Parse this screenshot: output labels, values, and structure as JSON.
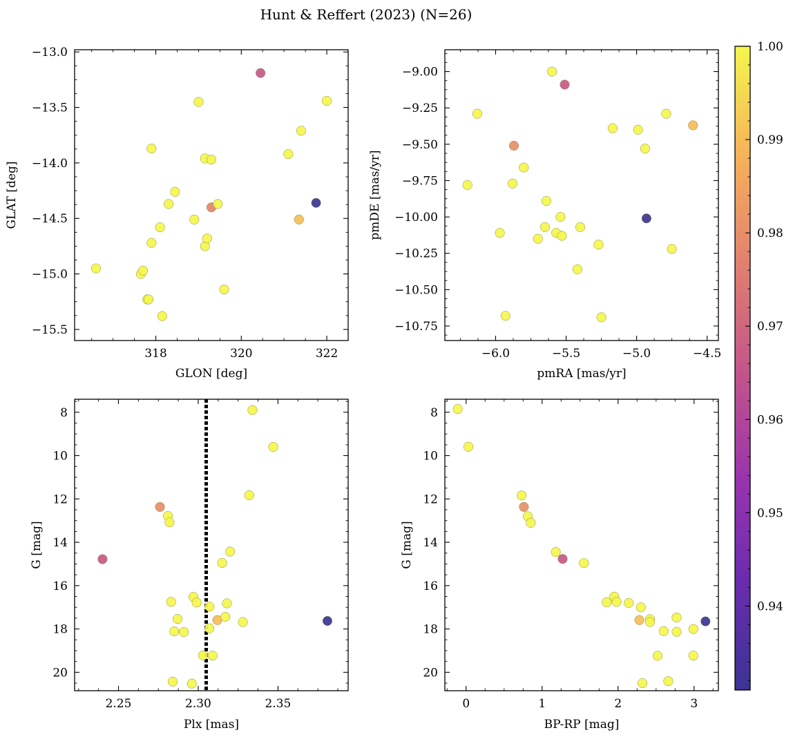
{
  "figure": {
    "title": "Hunt & Reffert (2023) (N=26)"
  },
  "colorbar": {
    "colormap": "plasma",
    "range": [
      0.931,
      1.0
    ],
    "ticks": [
      0.94,
      0.95,
      0.96,
      0.97,
      0.98,
      0.99,
      1.0
    ],
    "tick_labels": [
      "0.94",
      "0.95",
      "0.96",
      "0.97",
      "0.98",
      "0.99",
      "1.00"
    ]
  },
  "chart_data": [
    {
      "type": "scatter",
      "name": "position",
      "xlabel": "GLON [deg]",
      "ylabel": "GLAT [deg]",
      "xlim": [
        316.1,
        322.5
      ],
      "ylim": [
        -15.6,
        -12.98
      ],
      "xticks": [
        318,
        320,
        322
      ],
      "xtick_labels": [
        "318",
        "320",
        "322"
      ],
      "yticks": [
        -13.0,
        -13.5,
        -14.0,
        -14.5,
        -15.0,
        -15.5
      ],
      "ytick_labels": [
        "−13.0",
        "−13.5",
        "−14.0",
        "−14.5",
        "−15.0",
        "−15.5"
      ],
      "points": [
        {
          "x": 316.6,
          "y": -14.95,
          "c": 1.0
        },
        {
          "x": 317.65,
          "y": -15.0,
          "c": 1.0
        },
        {
          "x": 317.7,
          "y": -14.97,
          "c": 1.0
        },
        {
          "x": 317.8,
          "y": -15.23,
          "c": 1.0
        },
        {
          "x": 317.83,
          "y": -15.23,
          "c": 1.0
        },
        {
          "x": 317.9,
          "y": -14.72,
          "c": 1.0
        },
        {
          "x": 317.9,
          "y": -13.87,
          "c": 1.0
        },
        {
          "x": 318.1,
          "y": -14.58,
          "c": 1.0
        },
        {
          "x": 318.15,
          "y": -15.38,
          "c": 1.0
        },
        {
          "x": 318.3,
          "y": -14.37,
          "c": 1.0
        },
        {
          "x": 318.45,
          "y": -14.26,
          "c": 1.0
        },
        {
          "x": 318.9,
          "y": -14.51,
          "c": 1.0
        },
        {
          "x": 319.0,
          "y": -13.45,
          "c": 1.0
        },
        {
          "x": 319.15,
          "y": -13.96,
          "c": 1.0
        },
        {
          "x": 319.15,
          "y": -14.75,
          "c": 1.0
        },
        {
          "x": 319.2,
          "y": -14.68,
          "c": 1.0
        },
        {
          "x": 319.3,
          "y": -13.97,
          "c": 1.0
        },
        {
          "x": 319.3,
          "y": -14.4,
          "c": 0.978
        },
        {
          "x": 319.45,
          "y": -14.37,
          "c": 1.0
        },
        {
          "x": 319.6,
          "y": -15.14,
          "c": 1.0
        },
        {
          "x": 320.45,
          "y": -13.19,
          "c": 0.966
        },
        {
          "x": 321.1,
          "y": -13.92,
          "c": 1.0
        },
        {
          "x": 321.35,
          "y": -14.51,
          "c": 0.99
        },
        {
          "x": 321.4,
          "y": -13.71,
          "c": 1.0
        },
        {
          "x": 321.75,
          "y": -14.36,
          "c": 0.931
        },
        {
          "x": 322.0,
          "y": -13.44,
          "c": 1.0
        }
      ]
    },
    {
      "type": "scatter",
      "name": "proper-motion",
      "xlabel": "pmRA [mas/yr]",
      "ylabel": "pmDE [mas/yr]",
      "xlim": [
        -6.36,
        -4.42
      ],
      "ylim": [
        -10.85,
        -8.85
      ],
      "xticks": [
        -6.0,
        -5.5,
        -5.0,
        -4.5
      ],
      "xtick_labels": [
        "−6.0",
        "−5.5",
        "−5.0",
        "−4.5"
      ],
      "yticks": [
        -9.0,
        -9.25,
        -9.5,
        -9.75,
        -10.0,
        -10.25,
        -10.5,
        -10.75
      ],
      "ytick_labels": [
        "−9.00",
        "−9.25",
        "−9.50",
        "−9.75",
        "−10.00",
        "−10.25",
        "−10.50",
        "−10.75"
      ],
      "points": [
        {
          "x": -6.2,
          "y": -9.78,
          "c": 1.0
        },
        {
          "x": -6.13,
          "y": -9.29,
          "c": 1.0
        },
        {
          "x": -5.97,
          "y": -10.11,
          "c": 1.0
        },
        {
          "x": -5.93,
          "y": -10.68,
          "c": 1.0
        },
        {
          "x": -5.88,
          "y": -9.77,
          "c": 1.0
        },
        {
          "x": -5.87,
          "y": -9.51,
          "c": 0.98
        },
        {
          "x": -5.8,
          "y": -9.66,
          "c": 1.0
        },
        {
          "x": -5.7,
          "y": -10.15,
          "c": 1.0
        },
        {
          "x": -5.65,
          "y": -10.07,
          "c": 1.0
        },
        {
          "x": -5.64,
          "y": -9.89,
          "c": 1.0
        },
        {
          "x": -5.6,
          "y": -9.0,
          "c": 1.0
        },
        {
          "x": -5.57,
          "y": -10.11,
          "c": 1.0
        },
        {
          "x": -5.54,
          "y": -10.0,
          "c": 1.0
        },
        {
          "x": -5.53,
          "y": -10.13,
          "c": 1.0
        },
        {
          "x": -5.51,
          "y": -9.09,
          "c": 0.966
        },
        {
          "x": -5.42,
          "y": -10.36,
          "c": 1.0
        },
        {
          "x": -5.4,
          "y": -10.07,
          "c": 1.0
        },
        {
          "x": -5.27,
          "y": -10.19,
          "c": 1.0
        },
        {
          "x": -5.25,
          "y": -10.69,
          "c": 1.0
        },
        {
          "x": -5.17,
          "y": -9.39,
          "c": 1.0
        },
        {
          "x": -4.99,
          "y": -9.4,
          "c": 1.0
        },
        {
          "x": -4.94,
          "y": -9.53,
          "c": 1.0
        },
        {
          "x": -4.93,
          "y": -10.01,
          "c": 0.931
        },
        {
          "x": -4.79,
          "y": -9.29,
          "c": 1.0
        },
        {
          "x": -4.75,
          "y": -10.22,
          "c": 1.0
        },
        {
          "x": -4.6,
          "y": -9.37,
          "c": 0.99
        }
      ]
    },
    {
      "type": "scatter",
      "name": "parallax-magnitude",
      "xlabel": "Plx [mas]",
      "ylabel": "G [mag]",
      "xlim": [
        2.2225,
        2.394
      ],
      "ylim": [
        20.85,
        7.4
      ],
      "y_inverted": true,
      "xticks": [
        2.25,
        2.3,
        2.35
      ],
      "xtick_labels": [
        "2.25",
        "2.30",
        "2.35"
      ],
      "yticks": [
        8,
        10,
        12,
        14,
        16,
        18,
        20
      ],
      "ytick_labels": [
        "8",
        "10",
        "12",
        "14",
        "16",
        "18",
        "20"
      ],
      "reference_line": {
        "x": 2.305,
        "style": "dotted"
      },
      "points": [
        {
          "x": 2.24,
          "y": 14.78,
          "c": 0.966
        },
        {
          "x": 2.276,
          "y": 12.37,
          "c": 0.98
        },
        {
          "x": 2.281,
          "y": 12.79,
          "c": 1.0
        },
        {
          "x": 2.282,
          "y": 13.08,
          "c": 1.0
        },
        {
          "x": 2.283,
          "y": 16.75,
          "c": 1.0
        },
        {
          "x": 2.284,
          "y": 20.43,
          "c": 1.0
        },
        {
          "x": 2.285,
          "y": 18.11,
          "c": 1.0
        },
        {
          "x": 2.287,
          "y": 17.54,
          "c": 1.0
        },
        {
          "x": 2.291,
          "y": 18.14,
          "c": 1.0
        },
        {
          "x": 2.296,
          "y": 20.52,
          "c": 1.0
        },
        {
          "x": 2.297,
          "y": 16.52,
          "c": 1.0
        },
        {
          "x": 2.299,
          "y": 16.78,
          "c": 1.0
        },
        {
          "x": 2.303,
          "y": 19.22,
          "c": 1.0
        },
        {
          "x": 2.307,
          "y": 16.97,
          "c": 1.0
        },
        {
          "x": 2.307,
          "y": 17.97,
          "c": 1.0
        },
        {
          "x": 2.309,
          "y": 19.23,
          "c": 1.0
        },
        {
          "x": 2.312,
          "y": 17.59,
          "c": 0.99
        },
        {
          "x": 2.315,
          "y": 14.95,
          "c": 1.0
        },
        {
          "x": 2.317,
          "y": 17.44,
          "c": 1.0
        },
        {
          "x": 2.318,
          "y": 16.82,
          "c": 1.0
        },
        {
          "x": 2.32,
          "y": 14.43,
          "c": 1.0
        },
        {
          "x": 2.328,
          "y": 17.68,
          "c": 1.0
        },
        {
          "x": 2.332,
          "y": 11.83,
          "c": 1.0
        },
        {
          "x": 2.334,
          "y": 7.9,
          "c": 1.0
        },
        {
          "x": 2.347,
          "y": 9.6,
          "c": 1.0
        },
        {
          "x": 2.381,
          "y": 17.63,
          "c": 0.931
        }
      ]
    },
    {
      "type": "scatter",
      "name": "color-magnitude",
      "xlabel": "BP-RP [mag]",
      "ylabel": "G [mag]",
      "xlim": [
        -0.28,
        3.32
      ],
      "ylim": [
        20.85,
        7.4
      ],
      "y_inverted": true,
      "xticks": [
        0,
        1,
        2,
        3
      ],
      "xtick_labels": [
        "0",
        "1",
        "2",
        "3"
      ],
      "yticks": [
        8,
        10,
        12,
        14,
        16,
        18,
        20
      ],
      "ytick_labels": [
        "8",
        "10",
        "12",
        "14",
        "16",
        "18",
        "20"
      ],
      "points": [
        {
          "x": -0.11,
          "y": 7.85,
          "c": 1.0
        },
        {
          "x": 0.03,
          "y": 9.59,
          "c": 1.0
        },
        {
          "x": 0.73,
          "y": 11.84,
          "c": 1.0
        },
        {
          "x": 0.76,
          "y": 12.37,
          "c": 0.98
        },
        {
          "x": 0.81,
          "y": 12.8,
          "c": 1.0
        },
        {
          "x": 0.85,
          "y": 13.1,
          "c": 1.0
        },
        {
          "x": 1.18,
          "y": 14.45,
          "c": 1.0
        },
        {
          "x": 1.27,
          "y": 14.77,
          "c": 0.966
        },
        {
          "x": 1.55,
          "y": 14.96,
          "c": 1.0
        },
        {
          "x": 1.85,
          "y": 16.77,
          "c": 1.0
        },
        {
          "x": 1.95,
          "y": 16.51,
          "c": 1.0
        },
        {
          "x": 1.98,
          "y": 16.75,
          "c": 1.0
        },
        {
          "x": 2.14,
          "y": 16.8,
          "c": 1.0
        },
        {
          "x": 2.28,
          "y": 17.59,
          "c": 0.99
        },
        {
          "x": 2.3,
          "y": 17.0,
          "c": 1.0
        },
        {
          "x": 2.32,
          "y": 20.5,
          "c": 1.0
        },
        {
          "x": 2.42,
          "y": 17.55,
          "c": 1.0
        },
        {
          "x": 2.42,
          "y": 17.68,
          "c": 1.0
        },
        {
          "x": 2.52,
          "y": 19.24,
          "c": 1.0
        },
        {
          "x": 2.6,
          "y": 18.1,
          "c": 1.0
        },
        {
          "x": 2.66,
          "y": 20.41,
          "c": 1.0
        },
        {
          "x": 2.77,
          "y": 17.47,
          "c": 1.0
        },
        {
          "x": 2.77,
          "y": 18.13,
          "c": 1.0
        },
        {
          "x": 2.99,
          "y": 18.0,
          "c": 1.0
        },
        {
          "x": 2.99,
          "y": 19.23,
          "c": 1.0
        },
        {
          "x": 3.15,
          "y": 17.65,
          "c": 0.931
        }
      ]
    }
  ]
}
